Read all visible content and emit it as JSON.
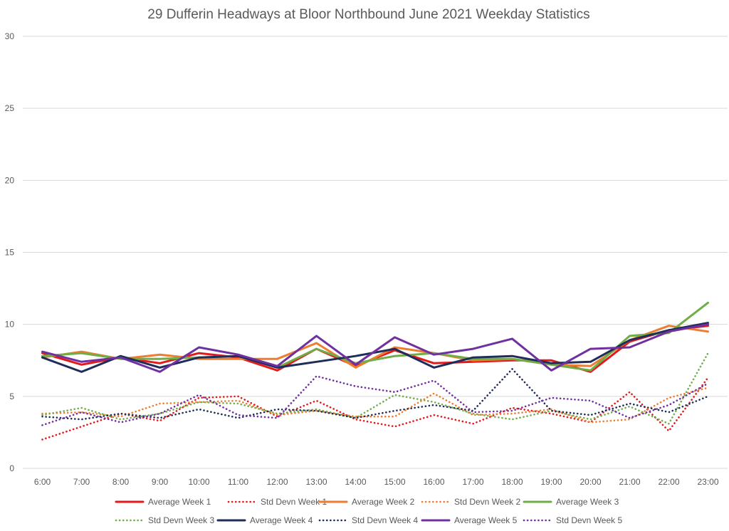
{
  "chart_data": {
    "type": "line",
    "title": "29 Dufferin Headways at Bloor Northbound June 2021 Weekday Statistics",
    "xlabel": "",
    "ylabel": "",
    "ylim": [
      0,
      30
    ],
    "yticks": [
      0,
      5,
      10,
      15,
      20,
      25,
      30
    ],
    "grid": true,
    "legend_position": "bottom",
    "categories": [
      "6:00",
      "7:00",
      "8:00",
      "9:00",
      "10:00",
      "11:00",
      "12:00",
      "13:00",
      "14:00",
      "15:00",
      "16:00",
      "17:00",
      "18:00",
      "19:00",
      "20:00",
      "21:00",
      "22:00",
      "23:00"
    ],
    "series": [
      {
        "name": "Average Week 1",
        "style": "solid",
        "color": "#e31a1c",
        "values": [
          8.0,
          7.2,
          7.7,
          7.3,
          8.0,
          7.7,
          6.8,
          8.3,
          7.1,
          8.2,
          7.3,
          7.4,
          7.5,
          7.5,
          6.7,
          8.8,
          9.6,
          9.9
        ]
      },
      {
        "name": "Std Devn Week 1",
        "style": "dotted",
        "color": "#e31a1c",
        "values": [
          2.0,
          2.9,
          3.8,
          3.3,
          4.9,
          5.0,
          3.6,
          4.7,
          3.4,
          2.9,
          3.7,
          3.1,
          4.2,
          3.8,
          3.2,
          5.3,
          2.6,
          6.3
        ]
      },
      {
        "name": "Average Week 2",
        "style": "solid",
        "color": "#ed7d31",
        "values": [
          7.7,
          8.1,
          7.6,
          7.9,
          7.6,
          7.6,
          7.6,
          8.7,
          7.0,
          8.4,
          8.0,
          7.5,
          7.6,
          7.2,
          7.1,
          8.9,
          9.9,
          9.5
        ]
      },
      {
        "name": "Std Devn Week 2",
        "style": "dotted",
        "color": "#ed7d31",
        "values": [
          3.8,
          3.9,
          3.6,
          4.5,
          4.6,
          4.7,
          3.7,
          4.0,
          3.6,
          3.6,
          5.2,
          3.7,
          3.8,
          4.1,
          3.2,
          3.4,
          4.9,
          5.6
        ]
      },
      {
        "name": "Average Week 3",
        "style": "solid",
        "color": "#70ad47",
        "values": [
          7.8,
          8.0,
          7.6,
          7.6,
          7.7,
          7.8,
          7.0,
          8.3,
          7.3,
          7.8,
          8.0,
          7.6,
          7.6,
          7.2,
          6.8,
          9.2,
          9.4,
          11.5
        ]
      },
      {
        "name": "Std Devn Week 3",
        "style": "dotted",
        "color": "#70ad47",
        "values": [
          3.7,
          4.2,
          3.4,
          3.8,
          4.6,
          4.5,
          3.8,
          4.1,
          3.5,
          5.1,
          4.6,
          3.8,
          3.4,
          4.0,
          3.4,
          4.3,
          3.1,
          8.0
        ]
      },
      {
        "name": "Average Week 4",
        "style": "solid",
        "color": "#1f2d5a",
        "values": [
          7.7,
          6.7,
          7.8,
          7.0,
          7.7,
          7.8,
          7.0,
          7.4,
          7.8,
          8.3,
          7.0,
          7.7,
          7.8,
          7.3,
          7.4,
          8.9,
          9.6,
          10.1
        ]
      },
      {
        "name": "Std Devn Week 4",
        "style": "dotted",
        "color": "#1f2d5a",
        "values": [
          3.6,
          3.4,
          3.8,
          3.5,
          4.1,
          3.5,
          4.1,
          4.0,
          3.5,
          4.0,
          4.4,
          4.0,
          6.9,
          4.0,
          3.7,
          4.5,
          3.9,
          5.0
        ]
      },
      {
        "name": "Average Week 5",
        "style": "solid",
        "color": "#7030a0",
        "values": [
          8.1,
          7.4,
          7.7,
          6.7,
          8.4,
          7.9,
          7.1,
          9.2,
          7.2,
          9.1,
          7.9,
          8.3,
          9.0,
          6.8,
          8.3,
          8.4,
          9.5,
          10.0
        ]
      },
      {
        "name": "Std Devn Week 5",
        "style": "dotted",
        "color": "#7030a0",
        "values": [
          3.0,
          3.9,
          3.2,
          3.8,
          5.1,
          3.7,
          3.5,
          6.4,
          5.7,
          5.3,
          6.1,
          3.9,
          4.0,
          4.9,
          4.7,
          3.5,
          4.4,
          5.9
        ]
      }
    ]
  }
}
